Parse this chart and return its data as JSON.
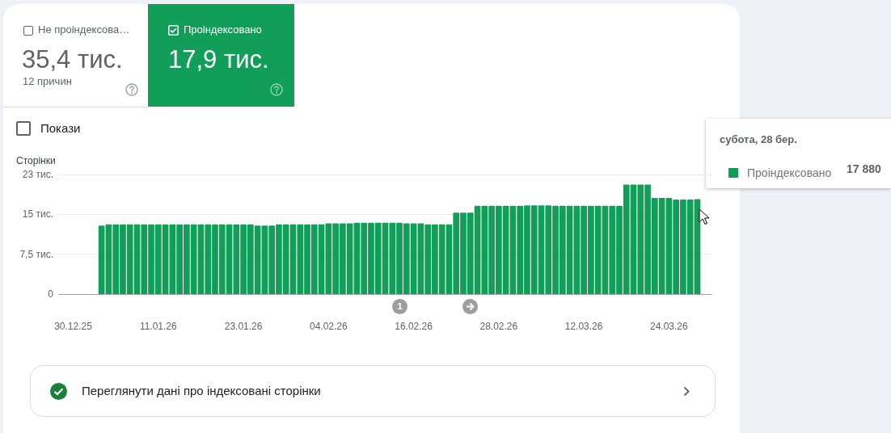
{
  "chart_data": {
    "type": "bar",
    "ylabel": "Сторінки",
    "categories": [
      null,
      null,
      "30.12.25",
      null,
      null,
      null,
      null,
      null,
      null,
      null,
      null,
      null,
      null,
      null,
      "11.01.26",
      null,
      null,
      null,
      null,
      null,
      null,
      null,
      null,
      null,
      null,
      null,
      "23.01.26",
      null,
      null,
      null,
      null,
      null,
      null,
      null,
      null,
      null,
      null,
      null,
      "04.02.26",
      null,
      null,
      null,
      null,
      null,
      null,
      null,
      null,
      null,
      null,
      null,
      "16.02.26",
      null,
      null,
      null,
      null,
      null,
      null,
      null,
      null,
      null,
      null,
      null,
      "28.02.26",
      null,
      null,
      null,
      null,
      null,
      null,
      null,
      null,
      null,
      null,
      null,
      "12.03.26",
      null,
      null,
      null,
      null,
      null,
      null,
      null,
      null,
      null,
      null,
      null,
      "24.03.26",
      null,
      null,
      null,
      null,
      null,
      null
    ],
    "series": [
      {
        "name": "Проіндексовано",
        "color": "#119e59",
        "values": [
          null,
          null,
          null,
          null,
          null,
          null,
          12.9,
          13.1,
          13.1,
          13.1,
          13.1,
          13.1,
          13.1,
          13.1,
          13.1,
          13.1,
          13.1,
          13.1,
          13.1,
          13.1,
          13.1,
          13.1,
          13.1,
          13.1,
          13.1,
          13.1,
          13.1,
          13.1,
          12.9,
          12.9,
          12.9,
          13.1,
          13.1,
          13.1,
          13.1,
          13.1,
          13.1,
          13.1,
          13.3,
          13.3,
          13.3,
          13.3,
          13.4,
          13.4,
          13.4,
          13.4,
          13.4,
          13.4,
          13.4,
          13.3,
          13.3,
          13.3,
          13.1,
          13.1,
          13.1,
          13.1,
          15.3,
          15.3,
          15.3,
          16.6,
          16.6,
          16.6,
          16.6,
          16.6,
          16.6,
          16.6,
          16.7,
          16.7,
          16.7,
          16.7,
          16.6,
          16.6,
          16.6,
          16.6,
          16.6,
          16.6,
          16.6,
          16.6,
          16.6,
          16.6,
          20.6,
          20.6,
          20.6,
          20.6,
          18.1,
          18.1,
          18.1,
          17.8,
          17.8,
          17.8,
          17.88,
          null,
          null
        ]
      }
    ],
    "ylim": [
      0,
      22.5
    ],
    "yticks": [
      0,
      {
        "value": 7.5,
        "label": "7,5 тис."
      },
      {
        "value": 15,
        "label": "15 тис."
      },
      {
        "value": 22.5,
        "label": "23 тис."
      }
    ],
    "grid": "y",
    "legend": "top right",
    "annotations": [
      "Не проіндексова…",
      "35,4 тис.",
      "12 причин",
      "17,9 тис.",
      "Покази",
      "субота, 28 бер.",
      "17 880",
      "1",
      "Переглянути дані про індексовані сторінки"
    ]
  }
}
